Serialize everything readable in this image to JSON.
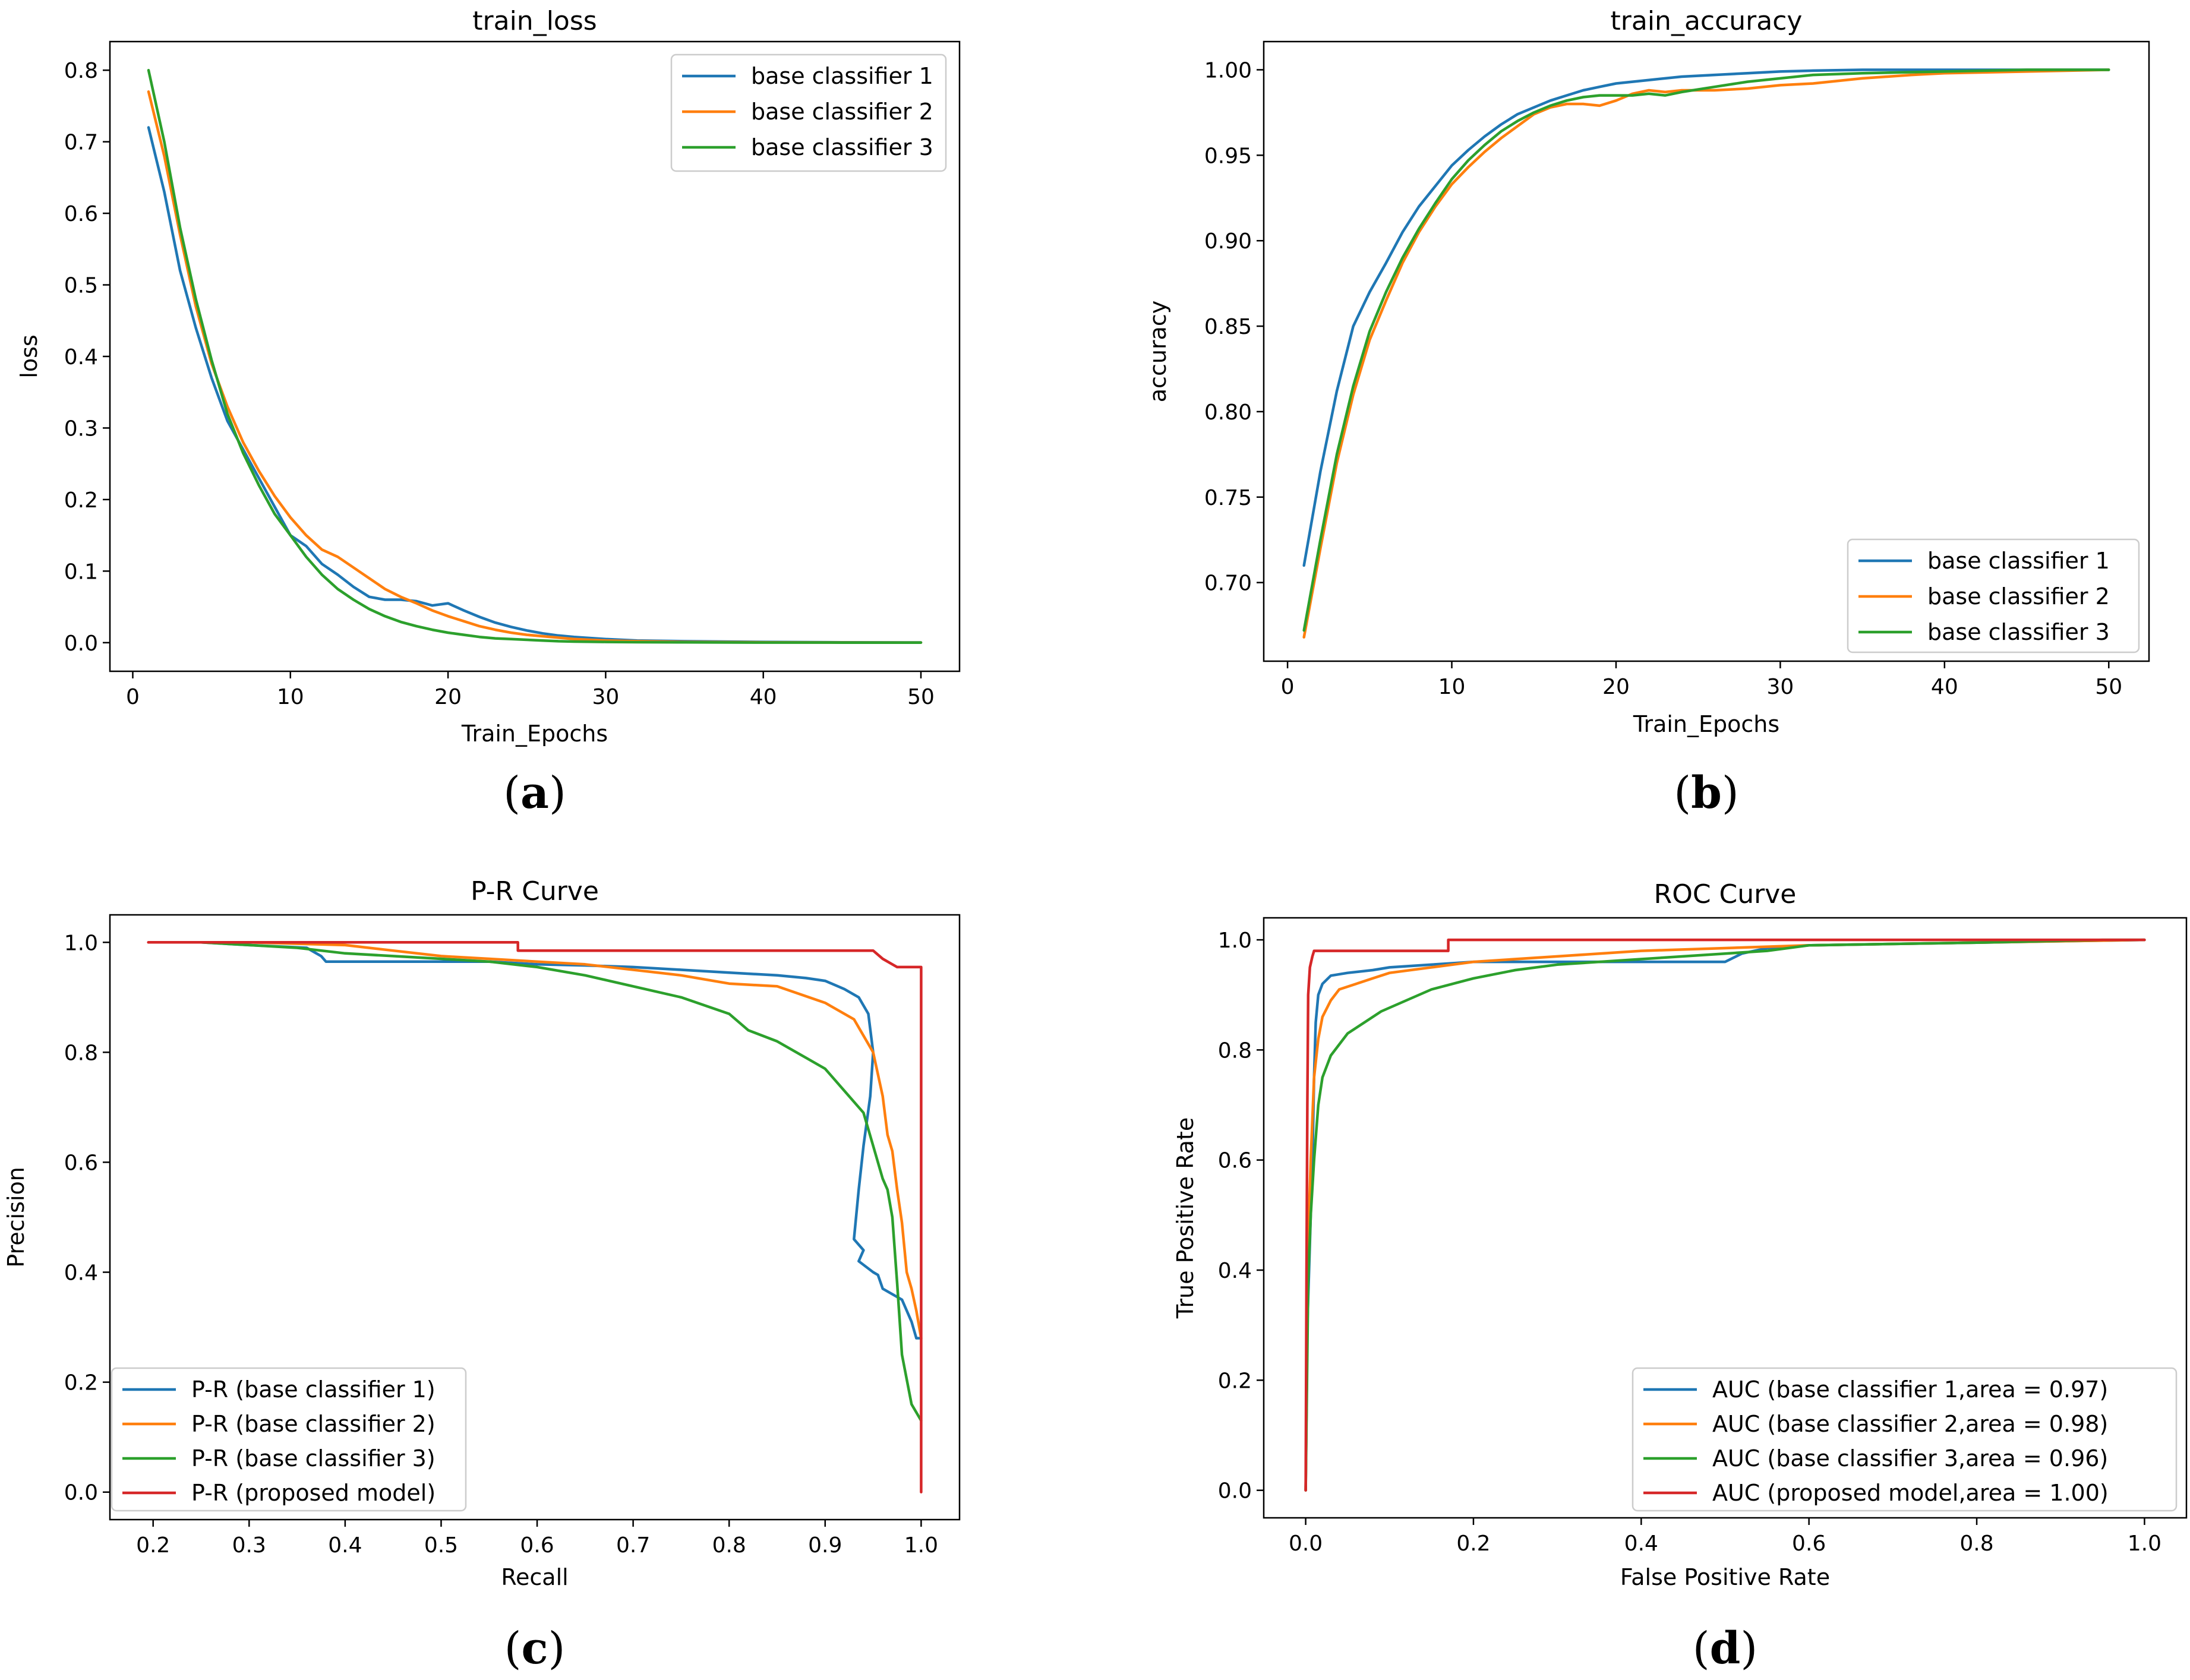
{
  "chart_data": [
    {
      "id": "a",
      "type": "line",
      "title": "train_loss",
      "xlabel": "Train_Epochs",
      "ylabel": "loss",
      "xlim": [
        -1.45,
        52.45
      ],
      "ylim": [
        -0.04,
        0.84
      ],
      "xticks": [
        0,
        10,
        20,
        30,
        40,
        50
      ],
      "xtick_labels": [
        "0",
        "10",
        "20",
        "30",
        "40",
        "50"
      ],
      "yticks": [
        0.0,
        0.1,
        0.2,
        0.3,
        0.4,
        0.5,
        0.6,
        0.7,
        0.8
      ],
      "ytick_labels": [
        "0.0",
        "0.1",
        "0.2",
        "0.3",
        "0.4",
        "0.5",
        "0.6",
        "0.7",
        "0.8"
      ],
      "legend_position": "upper right",
      "caption_letter": "a",
      "series": [
        {
          "name": "base classifier 1",
          "color": "#1f77b4",
          "x": [
            1,
            2,
            3,
            4,
            5,
            6,
            7,
            8,
            9,
            10,
            11,
            12,
            13,
            14,
            15,
            16,
            17,
            18,
            19,
            20,
            21,
            22,
            23,
            24,
            25,
            26,
            27,
            28,
            30,
            32,
            35,
            40,
            45,
            50
          ],
          "y": [
            0.72,
            0.63,
            0.52,
            0.44,
            0.37,
            0.31,
            0.27,
            0.23,
            0.19,
            0.15,
            0.135,
            0.11,
            0.095,
            0.078,
            0.064,
            0.06,
            0.06,
            0.058,
            0.052,
            0.055,
            0.045,
            0.036,
            0.028,
            0.022,
            0.017,
            0.013,
            0.01,
            0.008,
            0.005,
            0.003,
            0.002,
            0.001,
            0.0005,
            0.0003
          ]
        },
        {
          "name": "base classifier 2",
          "color": "#ff7f0e",
          "x": [
            1,
            2,
            3,
            4,
            5,
            6,
            7,
            8,
            9,
            10,
            11,
            12,
            13,
            14,
            15,
            16,
            17,
            18,
            19,
            20,
            21,
            22,
            23,
            24,
            25,
            26,
            27,
            28,
            30,
            32,
            35,
            40,
            45,
            50
          ],
          "y": [
            0.77,
            0.68,
            0.57,
            0.47,
            0.39,
            0.33,
            0.28,
            0.24,
            0.205,
            0.175,
            0.15,
            0.13,
            0.12,
            0.105,
            0.09,
            0.075,
            0.064,
            0.055,
            0.045,
            0.037,
            0.03,
            0.023,
            0.018,
            0.014,
            0.011,
            0.009,
            0.007,
            0.005,
            0.003,
            0.002,
            0.001,
            0.0005,
            0.0003,
            0.0002
          ]
        },
        {
          "name": "base classifier 3",
          "color": "#2ca02c",
          "x": [
            1,
            2,
            3,
            4,
            5,
            6,
            7,
            8,
            9,
            10,
            11,
            12,
            13,
            14,
            15,
            16,
            17,
            18,
            19,
            20,
            21,
            22,
            23,
            24,
            25,
            26,
            27,
            28,
            30,
            32,
            35,
            40,
            45,
            50
          ],
          "y": [
            0.8,
            0.7,
            0.58,
            0.48,
            0.395,
            0.32,
            0.265,
            0.22,
            0.18,
            0.15,
            0.12,
            0.095,
            0.075,
            0.06,
            0.047,
            0.037,
            0.029,
            0.023,
            0.018,
            0.014,
            0.011,
            0.008,
            0.006,
            0.005,
            0.004,
            0.003,
            0.002,
            0.0015,
            0.001,
            0.0007,
            0.0004,
            0.0002,
            0.0001,
            0.0001
          ]
        }
      ]
    },
    {
      "id": "b",
      "type": "line",
      "title": "train_accuracy",
      "xlabel": "Train_Epochs",
      "ylabel": "accuracy",
      "xlim": [
        -1.45,
        52.45
      ],
      "ylim": [
        0.654,
        1.0165
      ],
      "xticks": [
        0,
        10,
        20,
        30,
        40,
        50
      ],
      "xtick_labels": [
        "0",
        "10",
        "20",
        "30",
        "40",
        "50"
      ],
      "yticks": [
        0.7,
        0.75,
        0.8,
        0.85,
        0.9,
        0.95,
        1.0
      ],
      "ytick_labels": [
        "0.70",
        "0.75",
        "0.80",
        "0.85",
        "0.90",
        "0.95",
        "1.00"
      ],
      "legend_position": "lower right",
      "caption_letter": "b",
      "series": [
        {
          "name": "base classifier 1",
          "color": "#1f77b4",
          "x": [
            1,
            2,
            3,
            4,
            5,
            6,
            7,
            8,
            9,
            10,
            11,
            12,
            13,
            14,
            15,
            16,
            17,
            18,
            19,
            20,
            22,
            24,
            26,
            28,
            30,
            32,
            35,
            40,
            45,
            50
          ],
          "y": [
            0.71,
            0.765,
            0.812,
            0.85,
            0.87,
            0.887,
            0.905,
            0.92,
            0.932,
            0.944,
            0.953,
            0.961,
            0.968,
            0.974,
            0.978,
            0.982,
            0.985,
            0.988,
            0.99,
            0.992,
            0.994,
            0.996,
            0.997,
            0.998,
            0.999,
            0.9995,
            1.0,
            1.0,
            1.0,
            1.0
          ]
        },
        {
          "name": "base classifier 2",
          "color": "#ff7f0e",
          "x": [
            1,
            2,
            3,
            4,
            5,
            6,
            7,
            8,
            9,
            10,
            11,
            12,
            13,
            14,
            15,
            16,
            17,
            18,
            19,
            20,
            21,
            22,
            23,
            24,
            26,
            28,
            30,
            32,
            35,
            38,
            40,
            45,
            50
          ],
          "y": [
            0.668,
            0.72,
            0.77,
            0.81,
            0.842,
            0.865,
            0.887,
            0.905,
            0.92,
            0.933,
            0.943,
            0.952,
            0.96,
            0.967,
            0.974,
            0.978,
            0.98,
            0.98,
            0.979,
            0.982,
            0.986,
            0.988,
            0.987,
            0.988,
            0.988,
            0.989,
            0.991,
            0.992,
            0.995,
            0.997,
            0.998,
            0.999,
            1.0
          ]
        },
        {
          "name": "base classifier 3",
          "color": "#2ca02c",
          "x": [
            1,
            2,
            3,
            4,
            5,
            6,
            7,
            8,
            9,
            10,
            11,
            12,
            13,
            14,
            15,
            16,
            17,
            18,
            19,
            20,
            21,
            22,
            23,
            24,
            26,
            28,
            30,
            32,
            35,
            40,
            45,
            50
          ],
          "y": [
            0.672,
            0.725,
            0.775,
            0.815,
            0.847,
            0.87,
            0.89,
            0.907,
            0.922,
            0.936,
            0.947,
            0.956,
            0.964,
            0.97,
            0.975,
            0.979,
            0.982,
            0.984,
            0.985,
            0.985,
            0.985,
            0.986,
            0.985,
            0.987,
            0.99,
            0.993,
            0.995,
            0.997,
            0.998,
            0.999,
            1.0,
            1.0
          ]
        }
      ]
    },
    {
      "id": "c",
      "type": "line",
      "title": "P-R Curve",
      "xlabel": "Recall",
      "ylabel": "Precision",
      "xlim": [
        0.155,
        1.04
      ],
      "ylim": [
        -0.05,
        1.05
      ],
      "xticks": [
        0.2,
        0.3,
        0.4,
        0.5,
        0.6,
        0.7,
        0.8,
        0.9,
        1.0
      ],
      "xtick_labels": [
        "0.2",
        "0.3",
        "0.4",
        "0.5",
        "0.6",
        "0.7",
        "0.8",
        "0.9",
        "1.0"
      ],
      "yticks": [
        0.0,
        0.2,
        0.4,
        0.6,
        0.8,
        1.0
      ],
      "ytick_labels": [
        "0.0",
        "0.2",
        "0.4",
        "0.6",
        "0.8",
        "1.0"
      ],
      "legend_position": "lower left",
      "caption_letter": "c",
      "series": [
        {
          "name": "P-R (base classifier 1)",
          "color": "#1f77b4",
          "x": [
            0.25,
            0.3,
            0.36,
            0.375,
            0.38,
            0.45,
            0.5,
            0.55,
            0.6,
            0.65,
            0.7,
            0.75,
            0.8,
            0.85,
            0.88,
            0.9,
            0.92,
            0.935,
            0.945,
            0.95,
            0.947,
            0.94,
            0.935,
            0.93,
            0.94,
            0.935,
            0.95,
            0.955,
            0.96,
            0.97,
            0.98,
            0.99,
            0.995,
            1.0
          ],
          "y": [
            1.0,
            0.995,
            0.99,
            0.975,
            0.965,
            0.965,
            0.965,
            0.965,
            0.96,
            0.958,
            0.955,
            0.95,
            0.945,
            0.94,
            0.935,
            0.93,
            0.915,
            0.9,
            0.87,
            0.8,
            0.72,
            0.63,
            0.55,
            0.46,
            0.44,
            0.42,
            0.4,
            0.395,
            0.37,
            0.36,
            0.35,
            0.31,
            0.28,
            0.28
          ]
        },
        {
          "name": "P-R (base classifier 2)",
          "color": "#ff7f0e",
          "x": [
            0.25,
            0.3,
            0.4,
            0.45,
            0.5,
            0.55,
            0.6,
            0.65,
            0.7,
            0.75,
            0.8,
            0.85,
            0.9,
            0.93,
            0.95,
            0.96,
            0.965,
            0.97,
            0.975,
            0.98,
            0.985,
            0.99,
            0.995,
            1.0
          ],
          "y": [
            1.0,
            1.0,
            0.995,
            0.985,
            0.975,
            0.97,
            0.965,
            0.96,
            0.95,
            0.94,
            0.925,
            0.92,
            0.89,
            0.86,
            0.8,
            0.72,
            0.65,
            0.62,
            0.55,
            0.49,
            0.4,
            0.37,
            0.33,
            0.28
          ]
        },
        {
          "name": "P-R (base classifier 3)",
          "color": "#2ca02c",
          "x": [
            0.25,
            0.3,
            0.35,
            0.4,
            0.45,
            0.5,
            0.55,
            0.6,
            0.65,
            0.7,
            0.75,
            0.8,
            0.82,
            0.85,
            0.88,
            0.9,
            0.92,
            0.94,
            0.95,
            0.96,
            0.965,
            0.97,
            0.975,
            0.98,
            0.99,
            1.0
          ],
          "y": [
            1.0,
            0.995,
            0.99,
            0.98,
            0.975,
            0.97,
            0.965,
            0.955,
            0.94,
            0.92,
            0.9,
            0.87,
            0.84,
            0.82,
            0.79,
            0.77,
            0.73,
            0.69,
            0.63,
            0.57,
            0.55,
            0.5,
            0.38,
            0.25,
            0.16,
            0.13
          ]
        },
        {
          "name": "P-R (proposed model)",
          "color": "#d62728",
          "x": [
            0.195,
            0.3,
            0.4,
            0.5,
            0.58,
            0.58,
            0.7,
            0.8,
            0.9,
            0.95,
            0.96,
            0.97,
            0.975,
            0.99,
            1.0,
            1.0
          ],
          "y": [
            1.0,
            1.0,
            1.0,
            1.0,
            1.0,
            0.985,
            0.985,
            0.985,
            0.985,
            0.985,
            0.97,
            0.96,
            0.955,
            0.955,
            0.955,
            0.0
          ]
        }
      ]
    },
    {
      "id": "d",
      "type": "line",
      "title": "ROC Curve",
      "xlabel": "False Positive Rate",
      "ylabel": "True Positive Rate",
      "xlim": [
        -0.05,
        1.05
      ],
      "ylim": [
        -0.05,
        1.04
      ],
      "xticks": [
        0.0,
        0.2,
        0.4,
        0.6,
        0.8,
        1.0
      ],
      "xtick_labels": [
        "0.0",
        "0.2",
        "0.4",
        "0.6",
        "0.8",
        "1.0"
      ],
      "yticks": [
        0.0,
        0.2,
        0.4,
        0.6,
        0.8,
        1.0
      ],
      "ytick_labels": [
        "0.0",
        "0.2",
        "0.4",
        "0.6",
        "0.8",
        "1.0"
      ],
      "legend_position": "lower right",
      "caption_letter": "d",
      "series": [
        {
          "name": "AUC (base classifier 1,area = 0.97)",
          "color": "#1f77b4",
          "x": [
            0,
            0.002,
            0.005,
            0.008,
            0.01,
            0.012,
            0.015,
            0.02,
            0.03,
            0.05,
            0.08,
            0.1,
            0.15,
            0.2,
            0.3,
            0.4,
            0.5,
            0.52,
            0.55,
            0.6,
            0.8,
            1.0
          ],
          "y": [
            0,
            0.3,
            0.45,
            0.6,
            0.75,
            0.85,
            0.9,
            0.92,
            0.935,
            0.94,
            0.945,
            0.95,
            0.955,
            0.96,
            0.96,
            0.96,
            0.96,
            0.975,
            0.985,
            0.99,
            0.995,
            1.0
          ]
        },
        {
          "name": "AUC (base classifier 2,area = 0.98)",
          "color": "#ff7f0e",
          "x": [
            0,
            0.003,
            0.006,
            0.01,
            0.015,
            0.02,
            0.03,
            0.04,
            0.06,
            0.08,
            0.1,
            0.15,
            0.2,
            0.3,
            0.4,
            0.5,
            0.6,
            0.8,
            1.0
          ],
          "y": [
            0,
            0.45,
            0.6,
            0.75,
            0.82,
            0.86,
            0.89,
            0.91,
            0.92,
            0.93,
            0.94,
            0.95,
            0.96,
            0.97,
            0.98,
            0.985,
            0.99,
            0.995,
            1.0
          ]
        },
        {
          "name": "AUC (base classifier 3,area = 0.96)",
          "color": "#2ca02c",
          "x": [
            0,
            0.003,
            0.006,
            0.01,
            0.015,
            0.02,
            0.03,
            0.04,
            0.05,
            0.07,
            0.09,
            0.12,
            0.15,
            0.2,
            0.25,
            0.3,
            0.4,
            0.5,
            0.55,
            0.6,
            0.8,
            0.95,
            1.0
          ],
          "y": [
            0,
            0.38,
            0.5,
            0.6,
            0.7,
            0.75,
            0.79,
            0.81,
            0.83,
            0.85,
            0.87,
            0.89,
            0.91,
            0.93,
            0.945,
            0.955,
            0.965,
            0.975,
            0.98,
            0.99,
            0.995,
            1.0,
            1.0
          ]
        },
        {
          "name": "AUC (proposed model,area = 1.00)",
          "color": "#d62728",
          "x": [
            0,
            0.001,
            0.002,
            0.003,
            0.005,
            0.008,
            0.01,
            0.03,
            0.05,
            0.17,
            0.17,
            0.3,
            0.5,
            0.7,
            1.0
          ],
          "y": [
            0,
            0.4,
            0.7,
            0.9,
            0.95,
            0.97,
            0.98,
            0.98,
            0.98,
            0.98,
            1.0,
            1.0,
            1.0,
            1.0,
            1.0
          ]
        }
      ]
    }
  ]
}
